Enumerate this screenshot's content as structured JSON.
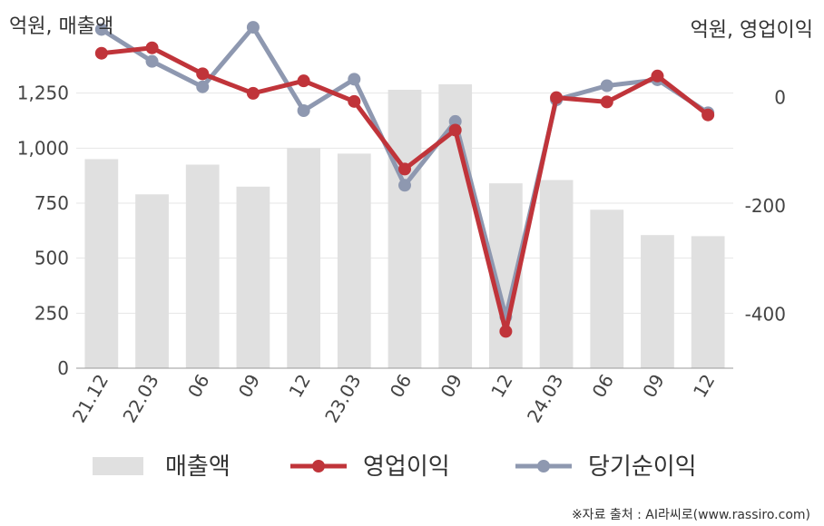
{
  "chart_data": {
    "type": "bar+line",
    "left_unit": "억원, 매출액",
    "right_unit": "억원, 영업이익",
    "categories": [
      "21.12",
      "22.03",
      "06",
      "09",
      "12",
      "23.03",
      "06",
      "09",
      "12",
      "24.03",
      "06",
      "09",
      "12"
    ],
    "left_axis": {
      "ylim": [
        0,
        1500
      ],
      "ticks": [
        0,
        250,
        500,
        750,
        1000,
        1250
      ]
    },
    "right_axis": {
      "ylim": [
        -500,
        110
      ],
      "ticks": [
        0,
        -200,
        -400
      ]
    },
    "series": [
      {
        "name": "매출액",
        "type": "bar",
        "axis": "left",
        "color": "#e0e0e0",
        "values": [
          950,
          790,
          925,
          825,
          1000,
          975,
          1265,
          1290,
          840,
          855,
          720,
          605,
          600
        ]
      },
      {
        "name": "영업이익",
        "type": "line",
        "axis": "right",
        "color": "#c0343a",
        "values": [
          82,
          92,
          44,
          8,
          31,
          -7,
          -132,
          -60,
          -432,
          0,
          -8,
          40,
          -32
        ]
      },
      {
        "name": "당기순이익",
        "type": "line",
        "axis": "right",
        "color": "#8e98b0",
        "values": [
          126,
          67,
          20,
          130,
          -24,
          34,
          -162,
          -44,
          -405,
          -4,
          22,
          33,
          -28
        ]
      }
    ],
    "grid": true,
    "legend_position": "bottom"
  },
  "source": "※자료 출처 : AI라씨로(www.rassiro.com)"
}
